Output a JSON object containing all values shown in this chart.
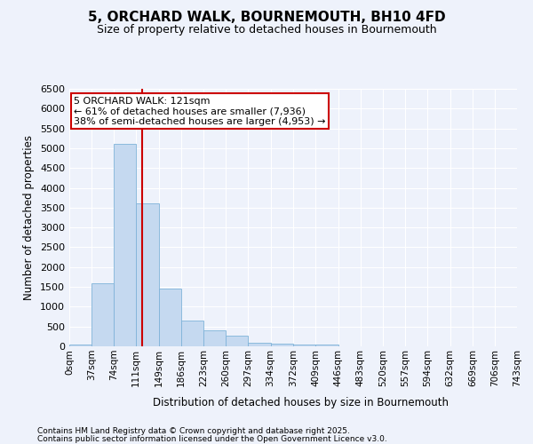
{
  "title_line1": "5, ORCHARD WALK, BOURNEMOUTH, BH10 4FD",
  "title_line2": "Size of property relative to detached houses in Bournemouth",
  "xlabel": "Distribution of detached houses by size in Bournemouth",
  "ylabel": "Number of detached properties",
  "bar_color": "#c5d9f0",
  "bar_edge_color": "#7fb3d9",
  "background_color": "#eef2fb",
  "grid_color": "#ffffff",
  "bins": [
    0,
    37,
    74,
    111,
    149,
    186,
    223,
    260,
    297,
    334,
    372,
    409,
    446,
    483,
    520,
    557,
    594,
    632,
    669,
    706,
    743
  ],
  "bin_labels": [
    "0sqm",
    "37sqm",
    "74sqm",
    "111sqm",
    "149sqm",
    "186sqm",
    "223sqm",
    "260sqm",
    "297sqm",
    "334sqm",
    "372sqm",
    "409sqm",
    "446sqm",
    "483sqm",
    "520sqm",
    "557sqm",
    "594sqm",
    "632sqm",
    "669sqm",
    "706sqm",
    "743sqm"
  ],
  "counts": [
    50,
    1600,
    5100,
    3600,
    1450,
    650,
    400,
    280,
    100,
    70,
    50,
    50,
    0,
    0,
    0,
    0,
    0,
    0,
    0,
    0
  ],
  "ylim": [
    0,
    6500
  ],
  "yticks": [
    0,
    500,
    1000,
    1500,
    2000,
    2500,
    3000,
    3500,
    4000,
    4500,
    5000,
    5500,
    6000,
    6500
  ],
  "property_size": 121,
  "vline_color": "#cc0000",
  "annotation_text": "5 ORCHARD WALK: 121sqm\n← 61% of detached houses are smaller (7,936)\n38% of semi-detached houses are larger (4,953) →",
  "annotation_box_color": "#ffffff",
  "annotation_box_edge": "#cc0000",
  "footnote_line1": "Contains HM Land Registry data © Crown copyright and database right 2025.",
  "footnote_line2": "Contains public sector information licensed under the Open Government Licence v3.0."
}
